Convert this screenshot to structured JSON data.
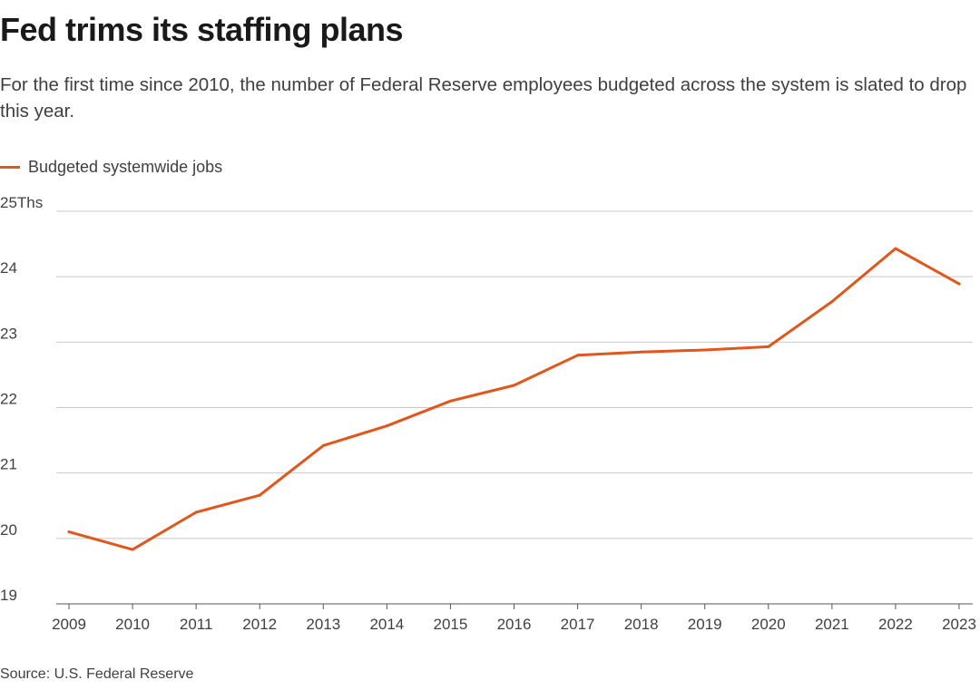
{
  "title": "Fed trims its staffing plans",
  "subtitle": "For the first time since 2010, the number of Federal Reserve employees budgeted across the system is slated to drop this year.",
  "legend": {
    "label": "Budgeted systemwide jobs",
    "color": "#e0561b"
  },
  "source": "Source: U.S. Federal Reserve",
  "colors": {
    "line": "#e0561b",
    "grid": "#c8c8c8",
    "text": "#404040",
    "title": "#1a1a1a"
  },
  "chart_data": {
    "type": "line",
    "title": "Fed trims its staffing plans",
    "xlabel": "",
    "ylabel": "",
    "unit_suffix": "Ths",
    "categories": [
      "2009",
      "2010",
      "2011",
      "2012",
      "2013",
      "2014",
      "2015",
      "2016",
      "2017",
      "2018",
      "2019",
      "2020",
      "2021",
      "2022",
      "2023"
    ],
    "series": [
      {
        "name": "Budgeted systemwide jobs",
        "values": [
          20.1,
          19.83,
          20.4,
          20.66,
          21.42,
          21.72,
          22.1,
          22.34,
          22.8,
          22.85,
          22.88,
          22.93,
          23.62,
          24.43,
          23.89
        ]
      }
    ],
    "ylim": [
      19,
      25
    ],
    "yticks": [
      19,
      20,
      21,
      22,
      23,
      24,
      25
    ],
    "ytick_labels": [
      "19",
      "20",
      "21",
      "22",
      "23",
      "24",
      "25Ths"
    ],
    "grid": true,
    "legend_position": "top-left"
  }
}
